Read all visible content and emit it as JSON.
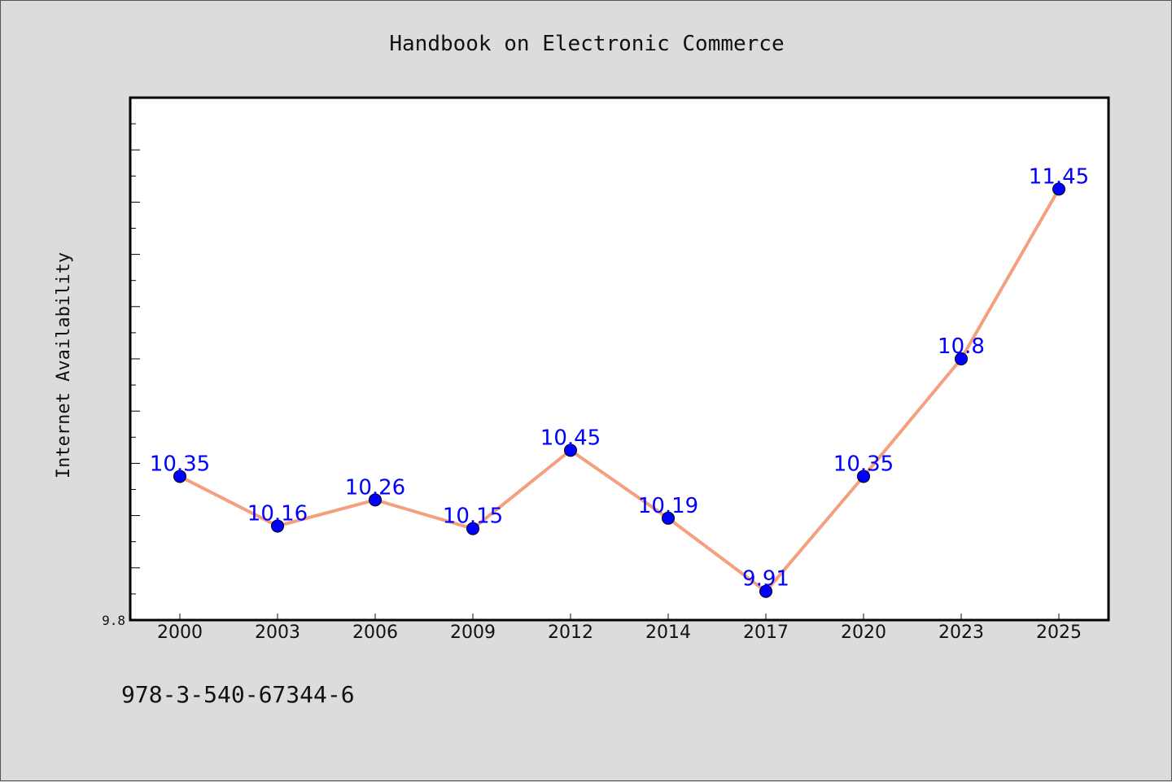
{
  "chart_data": {
    "type": "line",
    "title": "Handbook on Electronic Commerce",
    "xlabel": "",
    "ylabel": "Internet Availability",
    "categories": [
      "2000",
      "2003",
      "2006",
      "2009",
      "2012",
      "2014",
      "2017",
      "2020",
      "2023",
      "2025"
    ],
    "series": [
      {
        "values": [
          10.35,
          10.16,
          10.26,
          10.15,
          10.45,
          10.19,
          9.91,
          10.35,
          10.8,
          11.45
        ],
        "data_labels": [
          "10.35",
          "10.16",
          "10.26",
          "10.15",
          "10.45",
          "10.19",
          "9.91",
          "10.35",
          "10.8",
          "11.45"
        ]
      }
    ],
    "ylim": [
      9.8,
      11.8
    ],
    "y_tick_labels": [
      "9.8"
    ],
    "grid": false,
    "colors": {
      "line": "#f4a07f",
      "marker": "#0000ff",
      "marker_edge": "#000000",
      "data_label": "#0000ff",
      "plot_background": "#ffffff",
      "figure_background": "#dcdcdc"
    }
  },
  "footer": {
    "text": "978-3-540-67344-6"
  }
}
